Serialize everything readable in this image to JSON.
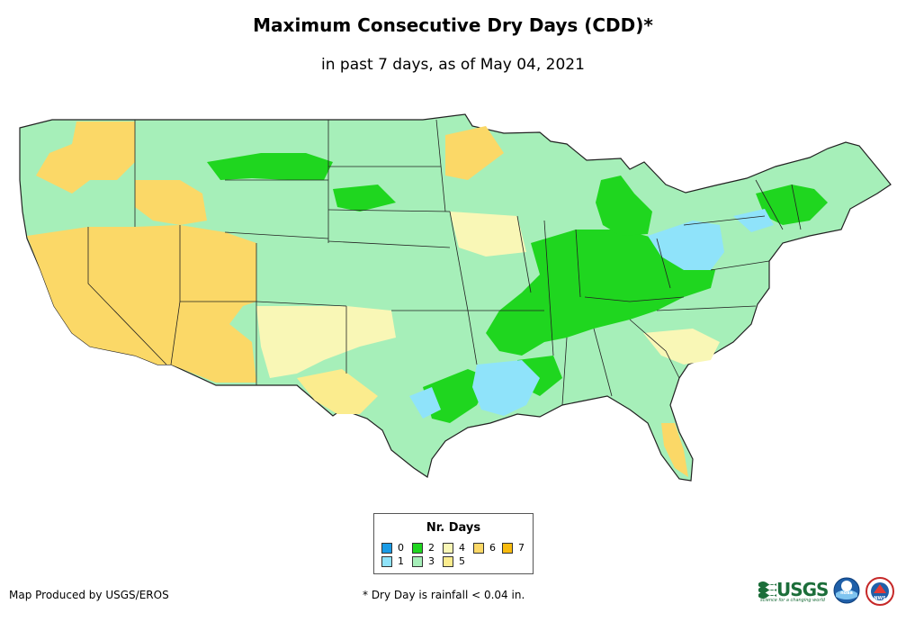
{
  "title": "Maximum Consecutive Dry Days (CDD)*",
  "subtitle": "in past 7 days, as of May 04, 2021",
  "legend": {
    "title": "Nr. Days",
    "items": [
      {
        "label": "0",
        "color": "#1a9be6"
      },
      {
        "label": "1",
        "color": "#8fe3fa"
      },
      {
        "label": "2",
        "color": "#1fd61f"
      },
      {
        "label": "3",
        "color": "#a6efb9"
      },
      {
        "label": "4",
        "color": "#f9f7b6"
      },
      {
        "label": "5",
        "color": "#fbec8e"
      },
      {
        "label": "6",
        "color": "#fbd867"
      },
      {
        "label": "7",
        "color": "#f8bb0e"
      }
    ]
  },
  "footer": {
    "credit": "Map Produced by USGS/EROS",
    "note": "* Dry Day is rainfall < 0.04 in."
  },
  "logos": {
    "usgs_text": "USGS",
    "usgs_tagline": "science for a changing world",
    "noaa_text": "noaa",
    "nws_text": "NWS"
  }
}
